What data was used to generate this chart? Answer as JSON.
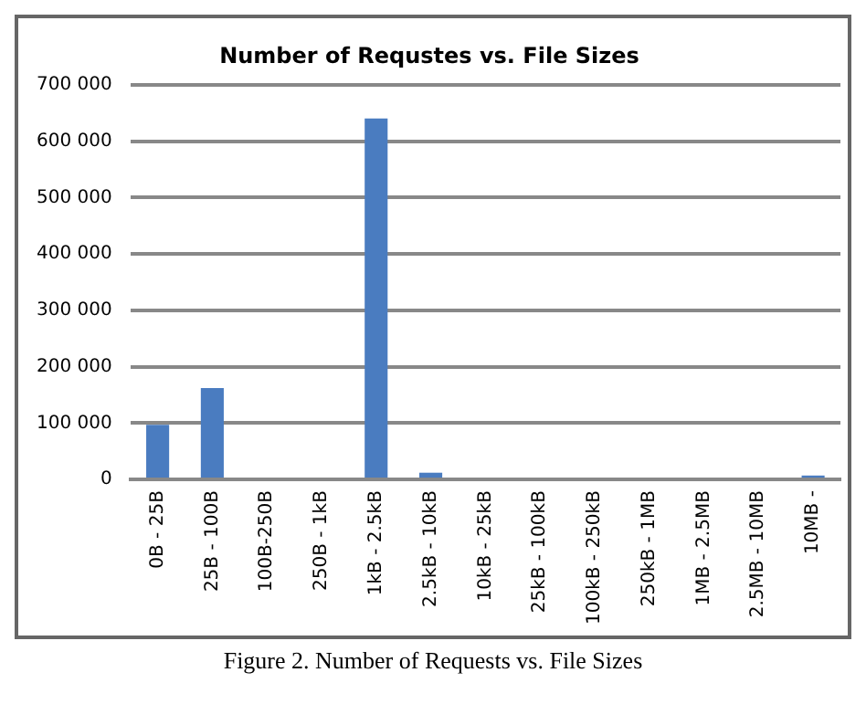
{
  "chart_data": {
    "type": "bar",
    "title": "Number of Requstes vs. File Sizes",
    "categories": [
      "0B - 25B",
      "25B - 100B",
      "100B-250B",
      "250B - 1kB",
      "1kB - 2.5kB",
      "2.5kB - 10kB",
      "10kB - 25kB",
      "25kB - 100kB",
      "100kB - 250kB",
      "250kB - 1MB",
      "1MB - 2.5MB",
      "2.5MB - 10MB",
      "10MB -"
    ],
    "values": [
      97000,
      162000,
      0,
      0,
      640000,
      12000,
      0,
      0,
      0,
      0,
      0,
      0,
      7000
    ],
    "color": "#4a7cc0",
    "ylim": [
      0,
      700000
    ],
    "yticks": [
      {
        "value": 0,
        "label": "0"
      },
      {
        "value": 100000,
        "label": "100 000"
      },
      {
        "value": 200000,
        "label": "200 000"
      },
      {
        "value": 300000,
        "label": "300 000"
      },
      {
        "value": 400000,
        "label": "400 000"
      },
      {
        "value": 500000,
        "label": "500 000"
      },
      {
        "value": 600000,
        "label": "600 000"
      },
      {
        "value": 700000,
        "label": "700 000"
      }
    ],
    "grid": "y",
    "annotations": [
      "Figure 2. Number of Requests vs. File Sizes"
    ]
  }
}
